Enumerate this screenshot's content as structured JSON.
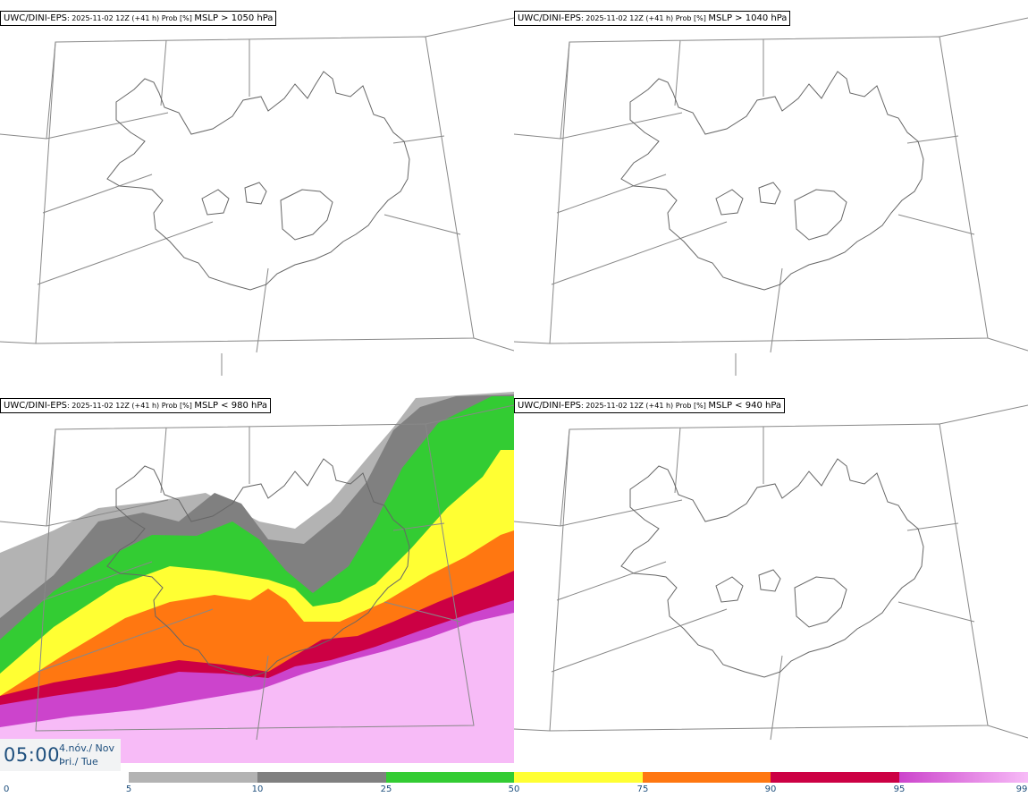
{
  "panels": [
    {
      "model": "UWC/DINI-EPS",
      "run": ": 2025-11-02 12Z (+41 h) Prob [%] ",
      "condition": "MSLP > 1050 hPa"
    },
    {
      "model": "UWC/DINI-EPS",
      "run": ": 2025-11-02 12Z (+41 h) Prob [%] ",
      "condition": "MSLP > 1040 hPa"
    },
    {
      "model": "UWC/DINI-EPS",
      "run": ": 2025-11-02 12Z (+41 h) Prob [%] ",
      "condition": "MSLP < 980 hPa"
    },
    {
      "model": "UWC/DINI-EPS",
      "run": ": 2025-11-02 12Z (+41 h) Prob [%] ",
      "condition": "MSLP < 940 hPa"
    }
  ],
  "time": {
    "clock": "05:00",
    "date_is": "4.nóv./ Nov",
    "day_is": "Þri./ Tue"
  },
  "legend": {
    "labels": [
      "0",
      "5",
      "10",
      "25",
      "50",
      "75",
      "90",
      "95",
      "99"
    ],
    "colors": [
      "#ffffff",
      "#b3b3b3",
      "#808080",
      "#33cc33",
      "#ffff33",
      "#ff7711",
      "#cc0044",
      "#cc44cc",
      "#f7bbf7"
    ]
  }
}
